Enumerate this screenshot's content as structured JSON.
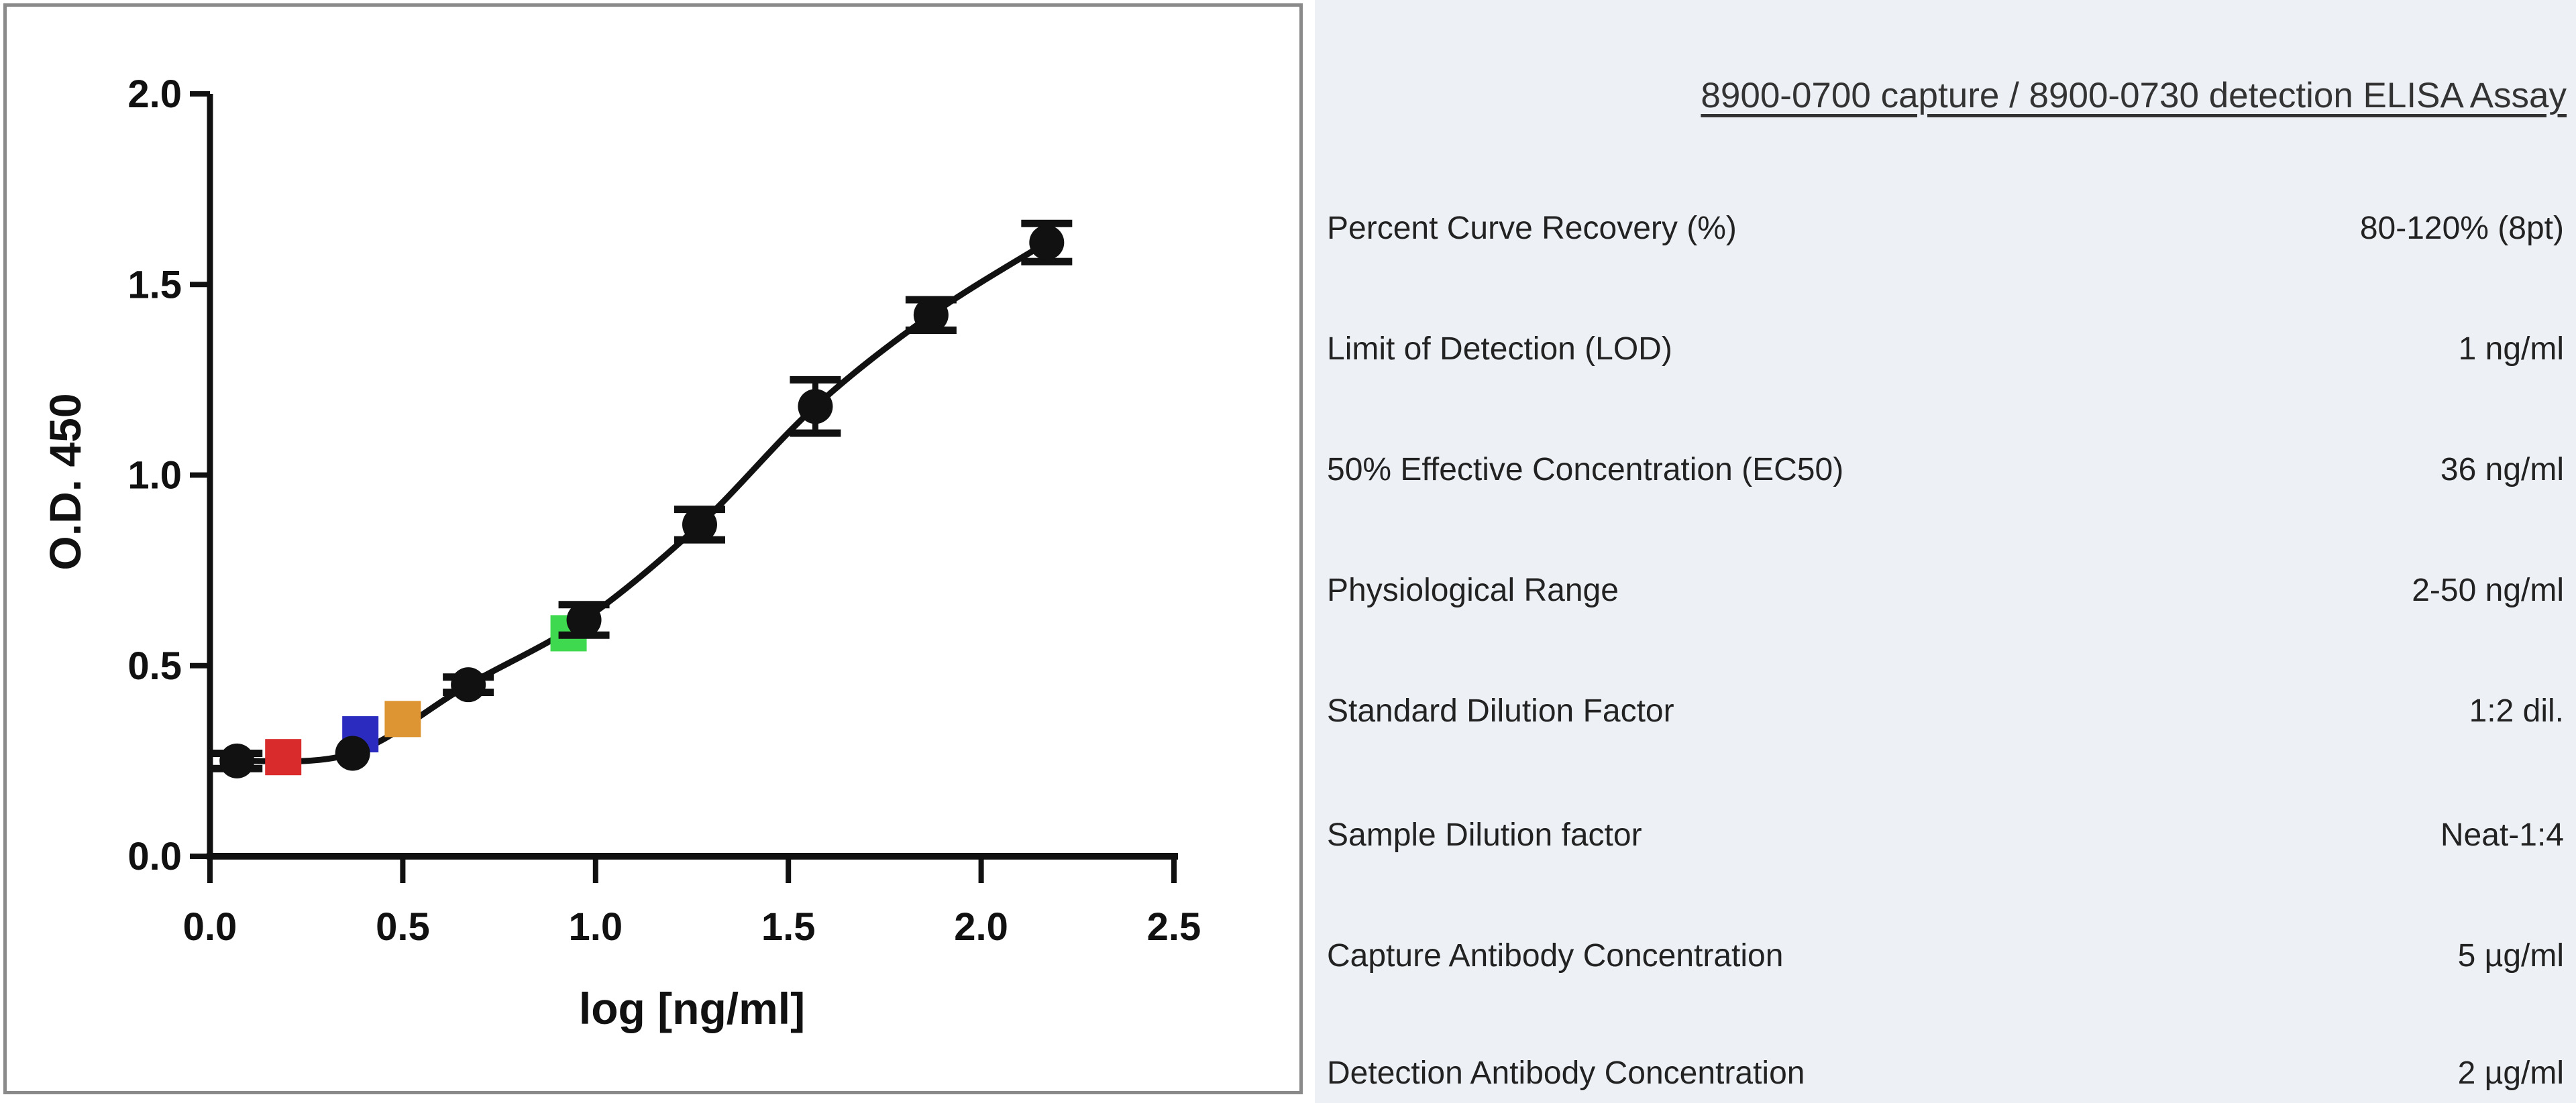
{
  "page": {
    "background": "#ffffff"
  },
  "left_panel": {
    "border_color": "#8a8a8a",
    "background": "#ffffff"
  },
  "right_panel": {
    "background": "#edf1f6",
    "title": "8900-0700 capture / 8900-0730 detection ELISA Assay",
    "rows": [
      {
        "label": "Percent Curve Recovery (%)",
        "value": "80-120% (8pt)"
      },
      {
        "label": "Limit of Detection (LOD)",
        "value": "1 ng/ml"
      },
      {
        "label": "50% Effective Concentration (EC50)",
        "value": "36 ng/ml"
      },
      {
        "label": "Physiological Range",
        "value": "2-50 ng/ml"
      },
      {
        "label": "Standard Dilution Factor",
        "value": "1:2 dil."
      },
      {
        "label": "Sample Dilution factor",
        "value": "Neat-1:4"
      },
      {
        "label": "Capture Antibody Concentration",
        "value": "5 µg/ml"
      },
      {
        "label": "Detection Antibody Concentration",
        "value": "2 µg/ml"
      }
    ]
  },
  "chart_data": {
    "type": "scatter",
    "title": "",
    "xlabel": "log [ng/ml]",
    "ylabel": "O.D. 450",
    "xlim": [
      0,
      2.5
    ],
    "ylim": [
      0,
      2.0
    ],
    "xticks": [
      "0.0",
      "0.5",
      "1.0",
      "1.5",
      "2.0",
      "2.5"
    ],
    "yticks": [
      "0.0",
      "0.5",
      "1.0",
      "1.5",
      "2.0"
    ],
    "grid": false,
    "legend": false,
    "axis_color": "#111111",
    "curve_color": "#111111",
    "series": [
      {
        "name": "standard-curve-points",
        "marker": "circle",
        "color": "#111111",
        "x": [
          0.07,
          0.37,
          0.67,
          0.97,
          1.27,
          1.57,
          1.87,
          2.17
        ],
        "y": [
          0.25,
          0.27,
          0.45,
          0.62,
          0.87,
          1.18,
          1.42,
          1.61
        ],
        "yerr": [
          0.02,
          0.0,
          0.02,
          0.04,
          0.04,
          0.07,
          0.04,
          0.05
        ]
      },
      {
        "name": "sample-points",
        "marker": "square",
        "points": [
          {
            "name": "red-sample",
            "x": 0.19,
            "y": 0.26,
            "color": "#d92b2b"
          },
          {
            "name": "blue-sample",
            "x": 0.39,
            "y": 0.32,
            "color": "#2b2bbf"
          },
          {
            "name": "orange-sample",
            "x": 0.5,
            "y": 0.36,
            "color": "#dd9433"
          },
          {
            "name": "green-sample",
            "x": 0.93,
            "y": 0.585,
            "color": "#3fd94f"
          }
        ]
      }
    ],
    "curve_through": "standard-curve-points"
  }
}
